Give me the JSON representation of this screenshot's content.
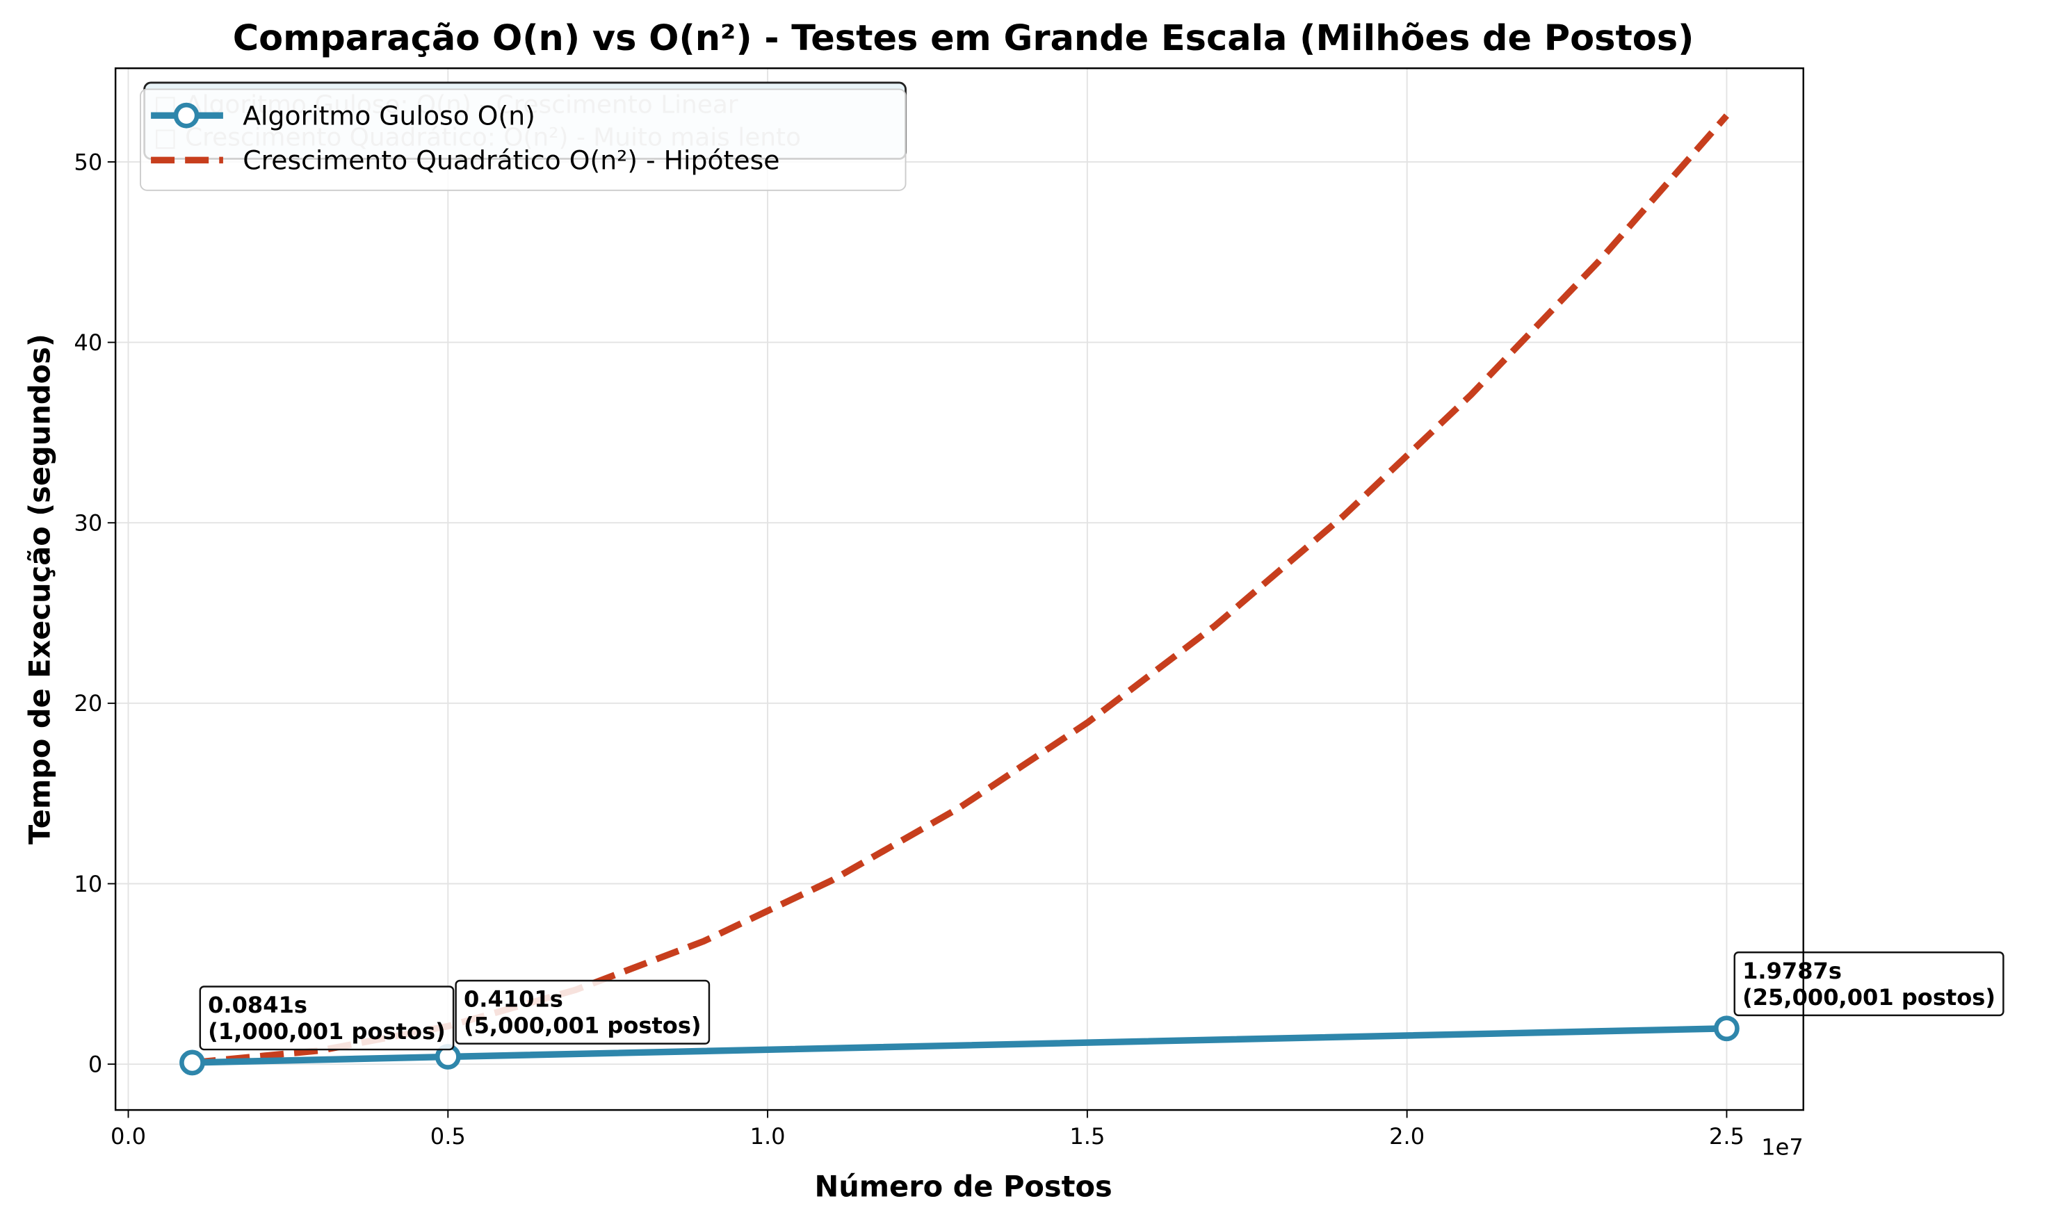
{
  "chart_data": {
    "type": "line",
    "title": "Comparação O(n) vs O(n²) - Testes em Grande Escala (Milhões de Postos)",
    "x_label": "Número de Postos",
    "y_label": "Tempo de Execução (segundos)",
    "x_offset_label": "1e7",
    "xlim": [
      -200000,
      26200000
    ],
    "ylim": [
      -2.54,
      55.19
    ],
    "xticks": [
      {
        "value": 0,
        "label": "0.0"
      },
      {
        "value": 5000000,
        "label": "0.5"
      },
      {
        "value": 10000000,
        "label": "1.0"
      },
      {
        "value": 15000000,
        "label": "1.5"
      },
      {
        "value": 20000000,
        "label": "2.0"
      },
      {
        "value": 25000000,
        "label": "2.5"
      }
    ],
    "yticks": [
      0,
      10,
      20,
      30,
      40,
      50
    ],
    "grid": true,
    "legend": "upper left",
    "series": [
      {
        "name": "Algoritmo Guloso O(n)",
        "color": "#2e86ab",
        "linestyle": "solid",
        "markers": true,
        "x": [
          1000001,
          5000001,
          25000001
        ],
        "values": [
          0.0841,
          0.4101,
          1.9787
        ]
      },
      {
        "name": "Crescimento Quadrático O(n²) - Hipótese",
        "color": "#c73e1d",
        "linestyle": "dashed",
        "markers": false,
        "x": [
          1000000,
          3000000,
          5000000,
          7000000,
          9000000,
          11000000,
          13000000,
          15000000,
          17000000,
          19000000,
          21000000,
          23000000,
          25000000
        ],
        "values": [
          0.0841,
          0.7569,
          2.1025,
          4.1209,
          6.8121,
          10.1761,
          14.2129,
          18.9225,
          24.3049,
          30.3601,
          37.0881,
          44.4889,
          52.5625
        ]
      }
    ],
    "annotations": [
      {
        "lines": [
          "0.0841s",
          "(1,000,001 postos)"
        ]
      },
      {
        "lines": [
          "0.4101s",
          "(5,000,001 postos)"
        ]
      },
      {
        "lines": [
          "1.9787s",
          "(25,000,001 postos)"
        ]
      }
    ],
    "info_box": [
      "□ Algoritmo Guloso: O(n) - Crescimento Linear",
      "□ Crescimento Quadrático: O(n²) - Muito mais lento"
    ]
  }
}
